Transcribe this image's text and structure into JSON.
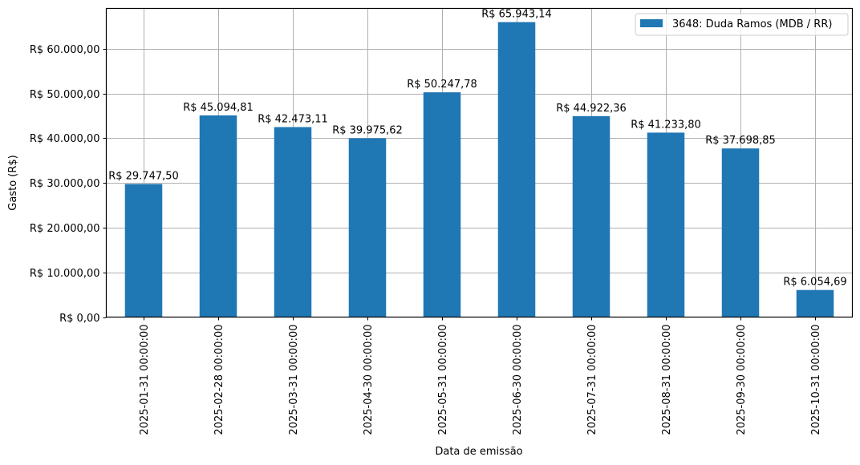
{
  "chart_data": {
    "type": "bar",
    "title": "",
    "xlabel": "Data de emissão",
    "ylabel": "Gasto (R$)",
    "ylim": [
      0,
      69000
    ],
    "grid": true,
    "legend_position": "upper right",
    "bar_color": "#1f77b4",
    "grid_color": "#b0b0b0",
    "categories": [
      "2025-01-31 00:00:00",
      "2025-02-28 00:00:00",
      "2025-03-31 00:00:00",
      "2025-04-30 00:00:00",
      "2025-05-31 00:00:00",
      "2025-06-30 00:00:00",
      "2025-07-31 00:00:00",
      "2025-08-31 00:00:00",
      "2025-09-30 00:00:00",
      "2025-10-31 00:00:00"
    ],
    "series": [
      {
        "name": "3648: Duda Ramos (MDB / RR)",
        "values": [
          29747.5,
          45094.81,
          42473.11,
          39975.62,
          50247.78,
          65943.14,
          44922.36,
          41233.8,
          37698.85,
          6054.69
        ],
        "labels": [
          "R$ 29.747,50",
          "R$ 45.094,81",
          "R$ 42.473,11",
          "R$ 39.975,62",
          "R$ 50.247,78",
          "R$ 65.943,14",
          "R$ 44.922,36",
          "R$ 41.233,80",
          "R$ 37.698,85",
          "R$ 6.054,69"
        ]
      }
    ],
    "yticks": [
      0,
      10000,
      20000,
      30000,
      40000,
      50000,
      60000
    ],
    "ytick_labels": [
      "R$ 0,00",
      "R$ 10.000,00",
      "R$ 20.000,00",
      "R$ 30.000,00",
      "R$ 40.000,00",
      "R$ 50.000,00",
      "R$ 60.000,00"
    ]
  }
}
